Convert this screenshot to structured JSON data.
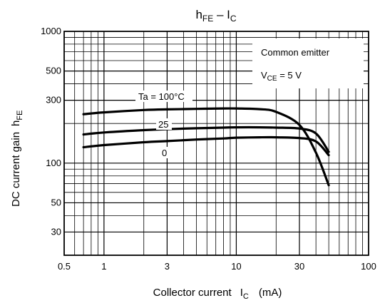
{
  "chart_data": {
    "type": "line",
    "title": {
      "main": "h",
      "main_sub": "FE",
      "sep": " – I",
      "sep_sub": "C"
    },
    "xlabel": {
      "text": "Collector current",
      "sym": "I",
      "sym_sub": "C",
      "unit": "(mA)"
    },
    "ylabel": {
      "text": "DC current gain",
      "sym": "h",
      "sym_sub": "FE"
    },
    "x_scale": "log",
    "y_scale": "log",
    "xlim": [
      0.5,
      100
    ],
    "ylim": [
      20,
      1000
    ],
    "x_ticks": [
      0.5,
      1,
      3,
      10,
      30,
      100
    ],
    "x_tick_labels": [
      "0.5",
      "1",
      "3",
      "10",
      "30",
      "100"
    ],
    "y_ticks": [
      30,
      50,
      100,
      300,
      500,
      1000
    ],
    "y_tick_labels": [
      "30",
      "50",
      "100",
      "300",
      "500",
      "1000"
    ],
    "grid": true,
    "annotations": {
      "line1": "Common emitter",
      "line2_sym": "V",
      "line2_sub": "CE",
      "line2_rest": " = 5 V"
    },
    "series": [
      {
        "label": "Ta = 100°C",
        "x": [
          0.7,
          1,
          2,
          3,
          5,
          8,
          10,
          15,
          20,
          30,
          40,
          50
        ],
        "y": [
          235,
          243,
          253,
          256,
          258,
          260,
          260,
          257,
          245,
          195,
          120,
          68
        ]
      },
      {
        "label": "25",
        "x": [
          0.7,
          1,
          2,
          3,
          5,
          8,
          10,
          15,
          20,
          30,
          40,
          50
        ],
        "y": [
          165,
          171,
          178,
          181,
          184,
          186,
          187,
          187,
          186,
          183,
          168,
          122
        ]
      },
      {
        "label": "0",
        "x": [
          0.7,
          1,
          2,
          3,
          5,
          8,
          10,
          15,
          20,
          30,
          40,
          50
        ],
        "y": [
          132,
          137,
          144,
          147,
          151,
          154,
          156,
          157,
          157,
          155,
          146,
          115
        ]
      }
    ]
  }
}
